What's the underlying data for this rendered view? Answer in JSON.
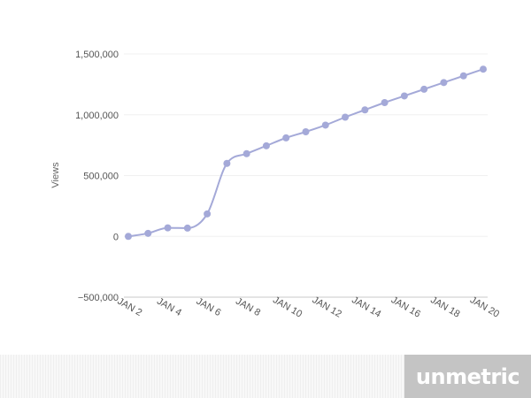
{
  "chart_data": {
    "type": "line",
    "title": "",
    "xlabel": "",
    "ylabel": "Views",
    "categories": [
      "JAN 2",
      "JAN 3",
      "JAN 4",
      "JAN 5",
      "JAN 6",
      "JAN 7",
      "JAN 8",
      "JAN 9",
      "JAN 10",
      "JAN 11",
      "JAN 12",
      "JAN 13",
      "JAN 14",
      "JAN 15",
      "JAN 16",
      "JAN 17",
      "JAN 18",
      "JAN 19",
      "JAN 20"
    ],
    "x_tick_labels": [
      "JAN 2",
      "JAN 4",
      "JAN 6",
      "JAN 8",
      "JAN 10",
      "JAN 12",
      "JAN 14",
      "JAN 16",
      "JAN 18",
      "JAN 20"
    ],
    "y_ticks": [
      1500000,
      1000000,
      500000,
      0,
      -500000
    ],
    "y_tick_labels": [
      "1,500,000",
      "1,000,000",
      "500,000",
      "0",
      "−500,000"
    ],
    "ylim": [
      -500000,
      1500000
    ],
    "grid": true,
    "series": [
      {
        "values": [
          0,
          25000,
          70000,
          68000,
          185000,
          600000,
          680000,
          745000,
          810000,
          860000,
          915000,
          980000,
          1040000,
          1100000,
          1155000,
          1210000,
          1265000,
          1320000,
          1375000
        ],
        "color": "#a4a9d8"
      }
    ]
  },
  "brand": {
    "name": "unmetric"
  }
}
